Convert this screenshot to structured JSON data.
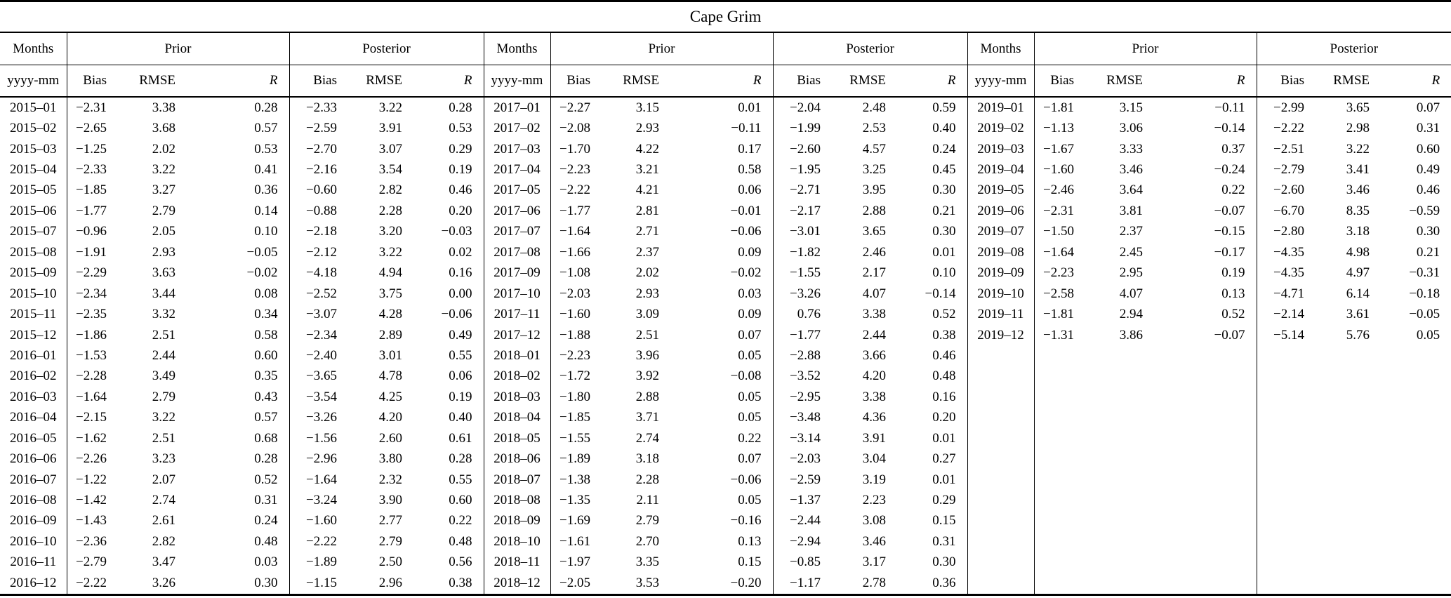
{
  "table": {
    "title": "Cape Grim",
    "headers": {
      "months": "Months",
      "prior": "Prior",
      "posterior": "Posterior",
      "sub_months": "yyyy-mm",
      "bias": "Bias",
      "rmse": "RMSE",
      "r": "R"
    },
    "row_count": 24,
    "groups": [
      {
        "rows": [
          [
            "2015–01",
            "−2.31",
            "3.38",
            "0.28",
            "−2.33",
            "3.22",
            "0.28"
          ],
          [
            "2015–02",
            "−2.65",
            "3.68",
            "0.57",
            "−2.59",
            "3.91",
            "0.53"
          ],
          [
            "2015–03",
            "−1.25",
            "2.02",
            "0.53",
            "−2.70",
            "3.07",
            "0.29"
          ],
          [
            "2015–04",
            "−2.33",
            "3.22",
            "0.41",
            "−2.16",
            "3.54",
            "0.19"
          ],
          [
            "2015–05",
            "−1.85",
            "3.27",
            "0.36",
            "−0.60",
            "2.82",
            "0.46"
          ],
          [
            "2015–06",
            "−1.77",
            "2.79",
            "0.14",
            "−0.88",
            "2.28",
            "0.20"
          ],
          [
            "2015–07",
            "−0.96",
            "2.05",
            "0.10",
            "−2.18",
            "3.20",
            "−0.03"
          ],
          [
            "2015–08",
            "−1.91",
            "2.93",
            "−0.05",
            "−2.12",
            "3.22",
            "0.02"
          ],
          [
            "2015–09",
            "−2.29",
            "3.63",
            "−0.02",
            "−4.18",
            "4.94",
            "0.16"
          ],
          [
            "2015–10",
            "−2.34",
            "3.44",
            "0.08",
            "−2.52",
            "3.75",
            "0.00"
          ],
          [
            "2015–11",
            "−2.35",
            "3.32",
            "0.34",
            "−3.07",
            "4.28",
            "−0.06"
          ],
          [
            "2015–12",
            "−1.86",
            "2.51",
            "0.58",
            "−2.34",
            "2.89",
            "0.49"
          ],
          [
            "2016–01",
            "−1.53",
            "2.44",
            "0.60",
            "−2.40",
            "3.01",
            "0.55"
          ],
          [
            "2016–02",
            "−2.28",
            "3.49",
            "0.35",
            "−3.65",
            "4.78",
            "0.06"
          ],
          [
            "2016–03",
            "−1.64",
            "2.79",
            "0.43",
            "−3.54",
            "4.25",
            "0.19"
          ],
          [
            "2016–04",
            "−2.15",
            "3.22",
            "0.57",
            "−3.26",
            "4.20",
            "0.40"
          ],
          [
            "2016–05",
            "−1.62",
            "2.51",
            "0.68",
            "−1.56",
            "2.60",
            "0.61"
          ],
          [
            "2016–06",
            "−2.26",
            "3.23",
            "0.28",
            "−2.96",
            "3.80",
            "0.28"
          ],
          [
            "2016–07",
            "−1.22",
            "2.07",
            "0.52",
            "−1.64",
            "2.32",
            "0.55"
          ],
          [
            "2016–08",
            "−1.42",
            "2.74",
            "0.31",
            "−3.24",
            "3.90",
            "0.60"
          ],
          [
            "2016–09",
            "−1.43",
            "2.61",
            "0.24",
            "−1.60",
            "2.77",
            "0.22"
          ],
          [
            "2016–10",
            "−2.36",
            "2.82",
            "0.48",
            "−2.22",
            "2.79",
            "0.48"
          ],
          [
            "2016–11",
            "−2.79",
            "3.47",
            "0.03",
            "−1.89",
            "2.50",
            "0.56"
          ],
          [
            "2016–12",
            "−2.22",
            "3.26",
            "0.30",
            "−1.15",
            "2.96",
            "0.38"
          ]
        ]
      },
      {
        "rows": [
          [
            "2017–01",
            "−2.27",
            "3.15",
            "0.01",
            "−2.04",
            "2.48",
            "0.59"
          ],
          [
            "2017–02",
            "−2.08",
            "2.93",
            "−0.11",
            "−1.99",
            "2.53",
            "0.40"
          ],
          [
            "2017–03",
            "−1.70",
            "4.22",
            "0.17",
            "−2.60",
            "4.57",
            "0.24"
          ],
          [
            "2017–04",
            "−2.23",
            "3.21",
            "0.58",
            "−1.95",
            "3.25",
            "0.45"
          ],
          [
            "2017–05",
            "−2.22",
            "4.21",
            "0.06",
            "−2.71",
            "3.95",
            "0.30"
          ],
          [
            "2017–06",
            "−1.77",
            "2.81",
            "−0.01",
            "−2.17",
            "2.88",
            "0.21"
          ],
          [
            "2017–07",
            "−1.64",
            "2.71",
            "−0.06",
            "−3.01",
            "3.65",
            "0.30"
          ],
          [
            "2017–08",
            "−1.66",
            "2.37",
            "0.09",
            "−1.82",
            "2.46",
            "0.01"
          ],
          [
            "2017–09",
            "−1.08",
            "2.02",
            "−0.02",
            "−1.55",
            "2.17",
            "0.10"
          ],
          [
            "2017–10",
            "−2.03",
            "2.93",
            "0.03",
            "−3.26",
            "4.07",
            "−0.14"
          ],
          [
            "2017–11",
            "−1.60",
            "3.09",
            "0.09",
            "0.76",
            "3.38",
            "0.52"
          ],
          [
            "2017–12",
            "−1.88",
            "2.51",
            "0.07",
            "−1.77",
            "2.44",
            "0.38"
          ],
          [
            "2018–01",
            "−2.23",
            "3.96",
            "0.05",
            "−2.88",
            "3.66",
            "0.46"
          ],
          [
            "2018–02",
            "−1.72",
            "3.92",
            "−0.08",
            "−3.52",
            "4.20",
            "0.48"
          ],
          [
            "2018–03",
            "−1.80",
            "2.88",
            "0.05",
            "−2.95",
            "3.38",
            "0.16"
          ],
          [
            "2018–04",
            "−1.85",
            "3.71",
            "0.05",
            "−3.48",
            "4.36",
            "0.20"
          ],
          [
            "2018–05",
            "−1.55",
            "2.74",
            "0.22",
            "−3.14",
            "3.91",
            "0.01"
          ],
          [
            "2018–06",
            "−1.89",
            "3.18",
            "0.07",
            "−2.03",
            "3.04",
            "0.27"
          ],
          [
            "2018–07",
            "−1.38",
            "2.28",
            "−0.06",
            "−2.59",
            "3.19",
            "0.01"
          ],
          [
            "2018–08",
            "−1.35",
            "2.11",
            "0.05",
            "−1.37",
            "2.23",
            "0.29"
          ],
          [
            "2018–09",
            "−1.69",
            "2.79",
            "−0.16",
            "−2.44",
            "3.08",
            "0.15"
          ],
          [
            "2018–10",
            "−1.61",
            "2.70",
            "0.13",
            "−2.94",
            "3.46",
            "0.31"
          ],
          [
            "2018–11",
            "−1.97",
            "3.35",
            "0.15",
            "−0.85",
            "3.17",
            "0.30"
          ],
          [
            "2018–12",
            "−2.05",
            "3.53",
            "−0.20",
            "−1.17",
            "2.78",
            "0.36"
          ]
        ]
      },
      {
        "rows": [
          [
            "2019–01",
            "−1.81",
            "3.15",
            "−0.11",
            "−2.99",
            "3.65",
            "0.07"
          ],
          [
            "2019–02",
            "−1.13",
            "3.06",
            "−0.14",
            "−2.22",
            "2.98",
            "0.31"
          ],
          [
            "2019–03",
            "−1.67",
            "3.33",
            "0.37",
            "−2.51",
            "3.22",
            "0.60"
          ],
          [
            "2019–04",
            "−1.60",
            "3.46",
            "−0.24",
            "−2.79",
            "3.41",
            "0.49"
          ],
          [
            "2019–05",
            "−2.46",
            "3.64",
            "0.22",
            "−2.60",
            "3.46",
            "0.46"
          ],
          [
            "2019–06",
            "−2.31",
            "3.81",
            "−0.07",
            "−6.70",
            "8.35",
            "−0.59"
          ],
          [
            "2019–07",
            "−1.50",
            "2.37",
            "−0.15",
            "−2.80",
            "3.18",
            "0.30"
          ],
          [
            "2019–08",
            "−1.64",
            "2.45",
            "−0.17",
            "−4.35",
            "4.98",
            "0.21"
          ],
          [
            "2019–09",
            "−2.23",
            "2.95",
            "0.19",
            "−4.35",
            "4.97",
            "−0.31"
          ],
          [
            "2019–10",
            "−2.58",
            "4.07",
            "0.13",
            "−4.71",
            "6.14",
            "−0.18"
          ],
          [
            "2019–11",
            "−1.81",
            "2.94",
            "0.52",
            "−2.14",
            "3.61",
            "−0.05"
          ],
          [
            "2019–12",
            "−1.31",
            "3.86",
            "−0.07",
            "−5.14",
            "5.76",
            "0.05"
          ]
        ]
      }
    ]
  }
}
